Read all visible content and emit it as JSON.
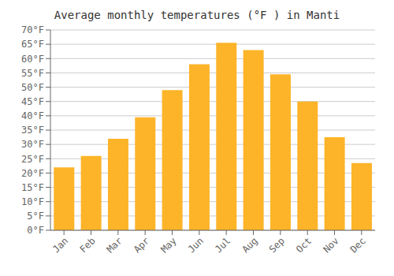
{
  "chart_data": {
    "type": "bar",
    "title": "Average monthly temperatures (°F ) in Manti",
    "categories": [
      "Jan",
      "Feb",
      "Mar",
      "Apr",
      "May",
      "Jun",
      "Jul",
      "Aug",
      "Sep",
      "Oct",
      "Nov",
      "Dec"
    ],
    "values": [
      22,
      26,
      32,
      39.5,
      49,
      58,
      65.5,
      63,
      54.5,
      45,
      32.5,
      23.5
    ],
    "color": "#FDB429",
    "ylim": [
      0,
      70
    ],
    "yticks": [
      {
        "value": 0,
        "label": "0°F"
      },
      {
        "value": 5,
        "label": "5°F"
      },
      {
        "value": 10,
        "label": "10°F"
      },
      {
        "value": 15,
        "label": "15°F"
      },
      {
        "value": 20,
        "label": "20°F"
      },
      {
        "value": 25,
        "label": "25°F"
      },
      {
        "value": 30,
        "label": "30°F"
      },
      {
        "value": 35,
        "label": "35°F"
      },
      {
        "value": 40,
        "label": "40°F"
      },
      {
        "value": 45,
        "label": "45°F"
      },
      {
        "value": 50,
        "label": "50°F"
      },
      {
        "value": 55,
        "label": "55°F"
      },
      {
        "value": 60,
        "label": "60°F"
      },
      {
        "value": 65,
        "label": "65°F"
      },
      {
        "value": 70,
        "label": "70°F"
      }
    ],
    "grid": true
  }
}
